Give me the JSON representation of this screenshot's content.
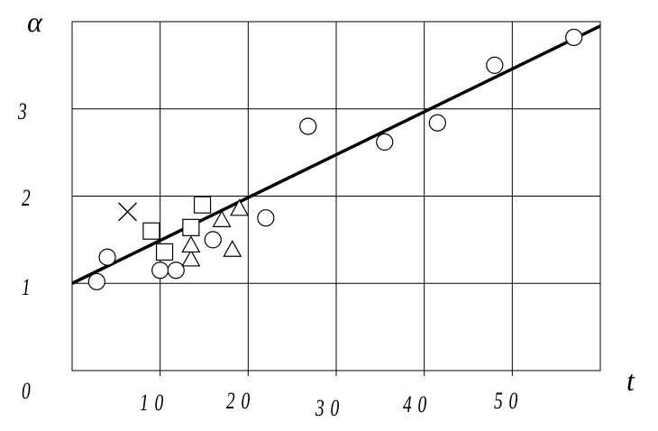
{
  "chart_data": {
    "type": "scatter",
    "title": "",
    "xlabel": "t",
    "ylabel": "α",
    "xlim": [
      0,
      60
    ],
    "ylim": [
      0,
      4
    ],
    "grid": true,
    "x_ticks": [
      10,
      20,
      30,
      40,
      50
    ],
    "y_ticks": [
      0,
      1,
      2,
      3
    ],
    "x_tick_labels": [
      "10",
      "20",
      "30",
      "40",
      "50"
    ],
    "y_tick_labels": [
      "0",
      "1",
      "2",
      "3"
    ],
    "series": [
      {
        "marker": "circle",
        "points": [
          {
            "x": 2.8,
            "y": 1.02
          },
          {
            "x": 4.0,
            "y": 1.3
          },
          {
            "x": 10.0,
            "y": 1.15
          },
          {
            "x": 11.8,
            "y": 1.15
          },
          {
            "x": 16.0,
            "y": 1.5
          },
          {
            "x": 22.0,
            "y": 1.75
          },
          {
            "x": 26.8,
            "y": 2.8
          },
          {
            "x": 35.5,
            "y": 2.62
          },
          {
            "x": 41.5,
            "y": 2.84
          },
          {
            "x": 48.0,
            "y": 3.5
          },
          {
            "x": 57.0,
            "y": 3.82
          }
        ]
      },
      {
        "marker": "square",
        "points": [
          {
            "x": 9.0,
            "y": 1.6
          },
          {
            "x": 10.5,
            "y": 1.36
          },
          {
            "x": 13.5,
            "y": 1.64
          },
          {
            "x": 14.8,
            "y": 1.9
          }
        ]
      },
      {
        "marker": "triangle",
        "points": [
          {
            "x": 13.5,
            "y": 1.27
          },
          {
            "x": 13.5,
            "y": 1.43
          },
          {
            "x": 17.0,
            "y": 1.72
          },
          {
            "x": 18.2,
            "y": 1.38
          },
          {
            "x": 19.0,
            "y": 1.85
          }
        ]
      },
      {
        "marker": "cross",
        "points": [
          {
            "x": 6.3,
            "y": 1.82
          }
        ]
      }
    ],
    "fit_line": {
      "x": [
        0,
        60
      ],
      "y": [
        1.0,
        3.95
      ]
    }
  }
}
